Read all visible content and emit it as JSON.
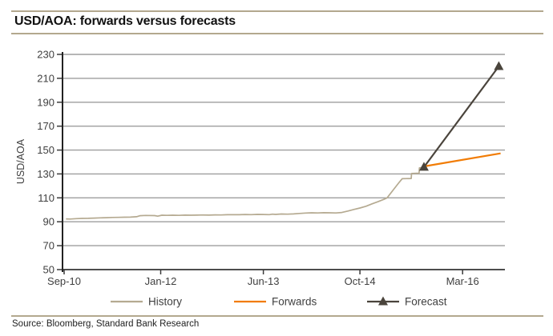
{
  "title": "USD/AOA: forwards versus forecasts",
  "source": "Source: Bloomberg, Standard Bank Research",
  "colors": {
    "accent_rule": "#b3a88e",
    "grid": "#9e9e9e",
    "axis": "#3a3a3a",
    "tick_label": "#3f3f3f",
    "history": "#b5aa91",
    "forwards": "#f17c05",
    "forecast": "#4a443c",
    "legend_text": "#3f3f3f"
  },
  "chart_data": {
    "type": "line",
    "title": "USD/AOA: forwards versus forecasts",
    "xlabel": "",
    "ylabel": "USD/AOA",
    "ylim": [
      50,
      230
    ],
    "yticks": [
      50,
      70,
      90,
      110,
      130,
      150,
      170,
      190,
      210,
      230
    ],
    "x_unit": "months since Sep-2010",
    "xticks": [
      {
        "label": "Sep-10",
        "m": 0
      },
      {
        "label": "Jan-12",
        "m": 16
      },
      {
        "label": "Jun-13",
        "m": 33
      },
      {
        "label": "Oct-14",
        "m": 49
      },
      {
        "label": "Mar-16",
        "m": 66
      }
    ],
    "grid": "horizontal",
    "legend_position": "bottom",
    "series": [
      {
        "name": "History",
        "color": "#b5aa91",
        "marker": "none",
        "points": [
          [
            0.3,
            92.4
          ],
          [
            1,
            92.3
          ],
          [
            2,
            92.6
          ],
          [
            3,
            92.8
          ],
          [
            4,
            92.9
          ],
          [
            5,
            93.1
          ],
          [
            6,
            93.3
          ],
          [
            7,
            93.4
          ],
          [
            8,
            93.6
          ],
          [
            9,
            93.7
          ],
          [
            10,
            93.8
          ],
          [
            11,
            93.9
          ],
          [
            12,
            94.2
          ],
          [
            12.6,
            95.1
          ],
          [
            13.5,
            95.3
          ],
          [
            15,
            95.2
          ],
          [
            15.5,
            94.7
          ],
          [
            16.2,
            95.5
          ],
          [
            17,
            95.4
          ],
          [
            18,
            95.5
          ],
          [
            19,
            95.4
          ],
          [
            20,
            95.6
          ],
          [
            21,
            95.5
          ],
          [
            22,
            95.6
          ],
          [
            23,
            95.7
          ],
          [
            24,
            95.6
          ],
          [
            25,
            95.8
          ],
          [
            26,
            95.7
          ],
          [
            27,
            95.9
          ],
          [
            28,
            96.0
          ],
          [
            29,
            95.9
          ],
          [
            30,
            96.1
          ],
          [
            31,
            96.0
          ],
          [
            32,
            96.2
          ],
          [
            33,
            96.1
          ],
          [
            34,
            96.0
          ],
          [
            34.5,
            96.4
          ],
          [
            35,
            96.2
          ],
          [
            36,
            96.5
          ],
          [
            37,
            96.4
          ],
          [
            38,
            96.6
          ],
          [
            39,
            97.0
          ],
          [
            40,
            97.3
          ],
          [
            41,
            97.5
          ],
          [
            42,
            97.4
          ],
          [
            43,
            97.6
          ],
          [
            44,
            97.5
          ],
          [
            45,
            97.4
          ],
          [
            46,
            97.8
          ],
          [
            47,
            99.0
          ],
          [
            48,
            100.3
          ],
          [
            49,
            101.5
          ],
          [
            50,
            103.0
          ],
          [
            51,
            105.0
          ],
          [
            52,
            106.8
          ],
          [
            53,
            108.8
          ],
          [
            53.5,
            110.0
          ],
          [
            54.5,
            116.5
          ],
          [
            55.5,
            123.0
          ],
          [
            56,
            126.0
          ],
          [
            57.5,
            126.2
          ],
          [
            57.55,
            130.4
          ],
          [
            58.8,
            130.6
          ],
          [
            58.85,
            135.1
          ],
          [
            59.6,
            135.6
          ]
        ]
      },
      {
        "name": "Forwards",
        "color": "#f17c05",
        "marker": "none",
        "points": [
          [
            59.6,
            136.3
          ],
          [
            72.3,
            147.2
          ]
        ]
      },
      {
        "name": "Forecast",
        "color": "#4a443c",
        "marker": "triangle",
        "points": [
          [
            59.6,
            135.7
          ],
          [
            72.0,
            220.0
          ]
        ]
      }
    ]
  }
}
